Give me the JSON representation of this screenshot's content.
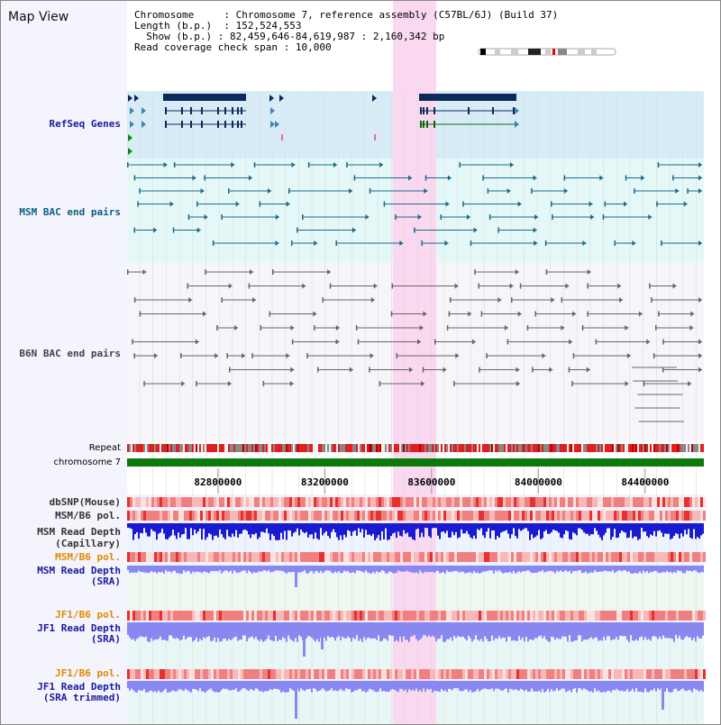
{
  "app_title": "Map View",
  "info": {
    "chromosome_key": "Chromosome",
    "chromosome_val": "Chromosome 7, reference assembly (C57BL/6J) (Build 37)",
    "length_key": "Length (b.p.)",
    "length_val": "152,524,553",
    "show_key": "Show (b.p.)",
    "show_val": "82,459,646-84,619,987 : 2,160,342 bp",
    "coverage_key": "Read coverage check span",
    "coverage_val": "10,000"
  },
  "tracks": {
    "refseq": "RefSeq Genes",
    "msm_bac": "MSM BAC end pairs",
    "b6n_bac": "B6N BAC end pairs",
    "repeat": "Repeat",
    "chromosome": "chromosome 7",
    "dbsnp": "dbSNP(Mouse)",
    "msm_b6_pol": "MSM/B6 pol.",
    "msm_read_cap_1": "MSM Read Depth",
    "msm_read_cap_2": "(Capillary)",
    "msm_b6_pol_2": "MSM/B6 pol.",
    "msm_read_sra_1": "MSM Read Depth",
    "msm_read_sra_2": "(SRA)",
    "jf1_b6_pol": "JF1/B6 pol.",
    "jf1_read_sra_1": "JF1 Read Depth",
    "jf1_read_sra_2": "(SRA)",
    "jf1_b6_pol_2": "JF1/B6 pol.",
    "jf1_read_trim_1": "JF1 Read Depth",
    "jf1_read_trim_2": "(SRA trimmed)"
  },
  "axis": {
    "ticks": [
      {
        "pos": 82800000,
        "label": "82800000"
      },
      {
        "pos": 83200000,
        "label": "83200000"
      },
      {
        "pos": 83600000,
        "label": "83600000"
      },
      {
        "pos": 84000000,
        "label": "84000000"
      },
      {
        "pos": 84400000,
        "label": "84400000"
      }
    ],
    "start": 82459646,
    "end": 84619987
  },
  "colors": {
    "highlight": "#f9d8f0",
    "refseq_bg": "#d8ecf8",
    "msm_bg": "#e4f8f8",
    "sra_bg": "#eef8ee",
    "gene": "#0c2a5a",
    "bac_msm": "#1a6a8a",
    "bac_b6n": "#666666",
    "chromosome": "#0a7a0a",
    "depth_cap": "#1a1ad0",
    "depth_sra": "#8888f0"
  }
}
